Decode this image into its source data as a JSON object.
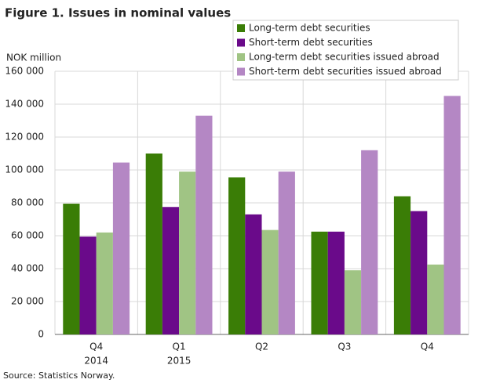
{
  "chart_data": {
    "type": "bar",
    "title": "Figure 1. Issues in nominal values",
    "y_label": "NOK million",
    "source": "Source: Statistics Norway.",
    "categories": [
      "Q4",
      "Q1",
      "Q2",
      "Q3",
      "Q4"
    ],
    "category_years": [
      "2014",
      "2015",
      null,
      null,
      null
    ],
    "series": [
      {
        "name": "Long-term debt securities",
        "color": "#3a7d06",
        "values": [
          79500,
          110000,
          95500,
          62500,
          84000
        ]
      },
      {
        "name": "Short-term debt securities",
        "color": "#6a0a8a",
        "values": [
          59500,
          77500,
          73000,
          62500,
          75000
        ]
      },
      {
        "name": "Long-term debt securities issued abroad",
        "color": "#a0c484",
        "values": [
          62000,
          99000,
          63500,
          39000,
          42500
        ]
      },
      {
        "name": "Short-term debt securities issued abroad",
        "color": "#b487c4",
        "values": [
          104500,
          133000,
          99000,
          112000,
          145000
        ]
      }
    ],
    "ylim": [
      0,
      160000
    ],
    "yticks": [
      0,
      {
        "value": 20000,
        "label": "20 000"
      },
      {
        "value": 40000,
        "label": "40 000"
      },
      {
        "value": 60000,
        "label": "60 000"
      },
      {
        "value": 80000,
        "label": "80 000"
      },
      {
        "value": 100000,
        "label": "100 000"
      },
      {
        "value": 120000,
        "label": "120 000"
      },
      {
        "value": 140000,
        "label": "140 000"
      },
      {
        "value": 160000,
        "label": "160 000"
      }
    ],
    "grid": true,
    "legend": "top-right"
  }
}
